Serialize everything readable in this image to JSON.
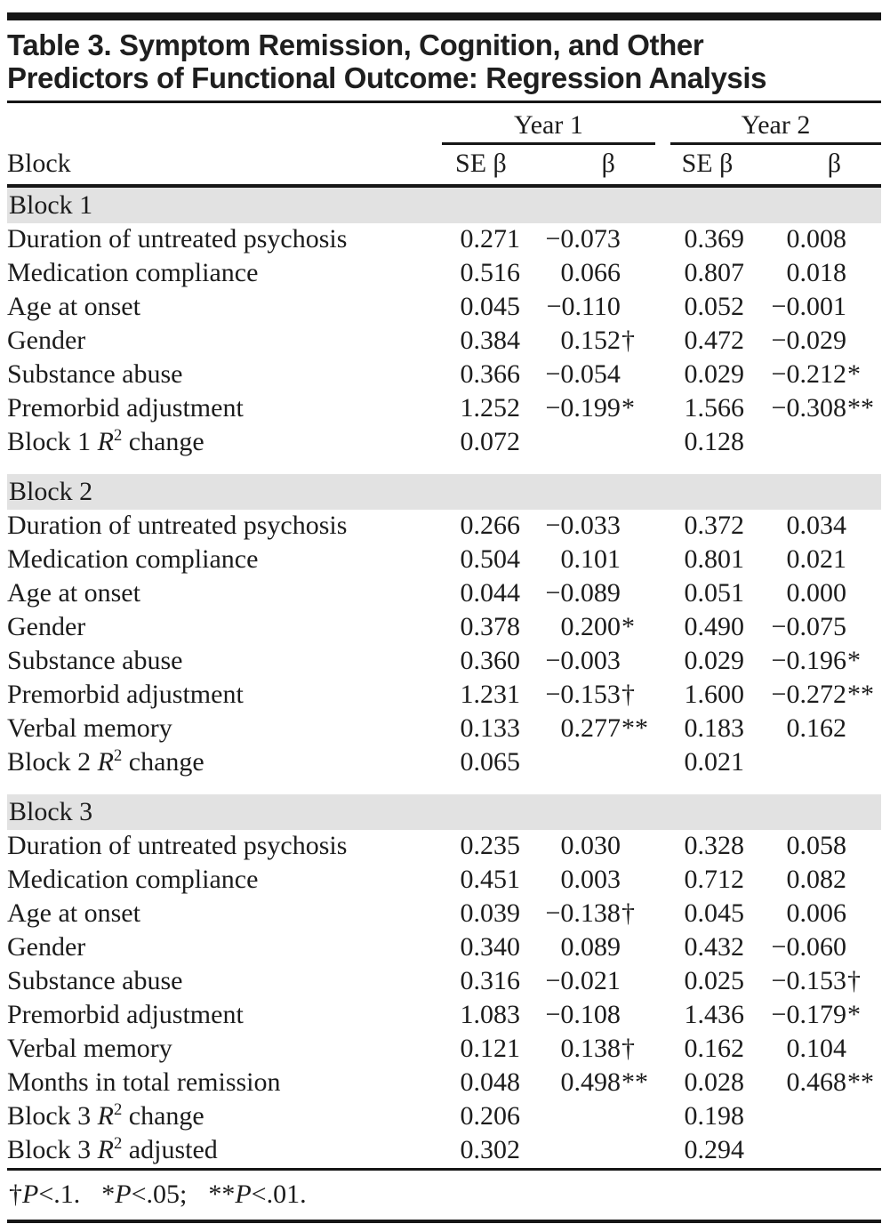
{
  "title_lines": [
    "Table 3. Symptom Remission, Cognition, and Other",
    "Predictors of Functional Outcome: Regression Analysis"
  ],
  "table": {
    "row_header": "Block",
    "year_groups": [
      "Year 1",
      "Year 2"
    ],
    "sub_headers": [
      "SE β",
      "β",
      "SE β",
      "β"
    ],
    "sections": [
      {
        "header": "Block 1",
        "rows": [
          {
            "label": "Duration of untreated psychosis",
            "y1": {
              "se": "0.271",
              "b": "−0.073",
              "bm": ""
            },
            "y2": {
              "se": "0.369",
              "b": "0.008",
              "bm": ""
            }
          },
          {
            "label": "Medication compliance",
            "y1": {
              "se": "0.516",
              "b": "0.066",
              "bm": ""
            },
            "y2": {
              "se": "0.807",
              "b": "0.018",
              "bm": ""
            }
          },
          {
            "label": "Age at onset",
            "y1": {
              "se": "0.045",
              "b": "−0.110",
              "bm": ""
            },
            "y2": {
              "se": "0.052",
              "b": "−0.001",
              "bm": ""
            }
          },
          {
            "label": "Gender",
            "y1": {
              "se": "0.384",
              "b": "0.152",
              "bm": "†"
            },
            "y2": {
              "se": "0.472",
              "b": "−0.029",
              "bm": ""
            }
          },
          {
            "label": "Substance abuse",
            "y1": {
              "se": "0.366",
              "b": "−0.054",
              "bm": ""
            },
            "y2": {
              "se": "0.029",
              "b": "−0.212",
              "bm": "*"
            }
          },
          {
            "label": "Premorbid adjustment",
            "y1": {
              "se": "1.252",
              "b": "−0.199",
              "bm": "*"
            },
            "y2": {
              "se": "1.566",
              "b": "−0.308",
              "bm": "**"
            }
          },
          {
            "label": "Block 1 R^2 change",
            "y1": {
              "se": "0.072",
              "b": "",
              "bm": ""
            },
            "y2": {
              "se": "0.128",
              "b": "",
              "bm": ""
            }
          }
        ]
      },
      {
        "header": "Block 2",
        "rows": [
          {
            "label": "Duration of untreated psychosis",
            "y1": {
              "se": "0.266",
              "b": "−0.033",
              "bm": ""
            },
            "y2": {
              "se": "0.372",
              "b": "0.034",
              "bm": ""
            }
          },
          {
            "label": "Medication compliance",
            "y1": {
              "se": "0.504",
              "b": "0.101",
              "bm": ""
            },
            "y2": {
              "se": "0.801",
              "b": "0.021",
              "bm": ""
            }
          },
          {
            "label": "Age at onset",
            "y1": {
              "se": "0.044",
              "b": "−0.089",
              "bm": ""
            },
            "y2": {
              "se": "0.051",
              "b": "0.000",
              "bm": ""
            }
          },
          {
            "label": "Gender",
            "y1": {
              "se": "0.378",
              "b": "0.200",
              "bm": "*"
            },
            "y2": {
              "se": "0.490",
              "b": "−0.075",
              "bm": ""
            }
          },
          {
            "label": "Substance abuse",
            "y1": {
              "se": "0.360",
              "b": "−0.003",
              "bm": ""
            },
            "y2": {
              "se": "0.029",
              "b": "−0.196",
              "bm": "*"
            }
          },
          {
            "label": "Premorbid adjustment",
            "y1": {
              "se": "1.231",
              "b": "−0.153",
              "bm": "†"
            },
            "y2": {
              "se": "1.600",
              "b": "−0.272",
              "bm": "**"
            }
          },
          {
            "label": "Verbal memory",
            "y1": {
              "se": "0.133",
              "b": "0.277",
              "bm": "**"
            },
            "y2": {
              "se": "0.183",
              "b": "0.162",
              "bm": ""
            }
          },
          {
            "label": "Block 2 R^2 change",
            "y1": {
              "se": "0.065",
              "b": "",
              "bm": ""
            },
            "y2": {
              "se": "0.021",
              "b": "",
              "bm": ""
            }
          }
        ]
      },
      {
        "header": "Block 3",
        "rows": [
          {
            "label": "Duration of untreated psychosis",
            "y1": {
              "se": "0.235",
              "b": "0.030",
              "bm": ""
            },
            "y2": {
              "se": "0.328",
              "b": "0.058",
              "bm": ""
            }
          },
          {
            "label": "Medication compliance",
            "y1": {
              "se": "0.451",
              "b": "0.003",
              "bm": ""
            },
            "y2": {
              "se": "0.712",
              "b": "0.082",
              "bm": ""
            }
          },
          {
            "label": "Age at onset",
            "y1": {
              "se": "0.039",
              "b": "−0.138",
              "bm": "†"
            },
            "y2": {
              "se": "0.045",
              "b": "0.006",
              "bm": ""
            }
          },
          {
            "label": "Gender",
            "y1": {
              "se": "0.340",
              "b": "0.089",
              "bm": ""
            },
            "y2": {
              "se": "0.432",
              "b": "−0.060",
              "bm": ""
            }
          },
          {
            "label": "Substance abuse",
            "y1": {
              "se": "0.316",
              "b": "−0.021",
              "bm": ""
            },
            "y2": {
              "se": "0.025",
              "b": "−0.153",
              "bm": "†"
            }
          },
          {
            "label": "Premorbid adjustment",
            "y1": {
              "se": "1.083",
              "b": "−0.108",
              "bm": ""
            },
            "y2": {
              "se": "1.436",
              "b": "−0.179",
              "bm": "*"
            }
          },
          {
            "label": "Verbal memory",
            "y1": {
              "se": "0.121",
              "b": "0.138",
              "bm": "†"
            },
            "y2": {
              "se": "0.162",
              "b": "0.104",
              "bm": ""
            }
          },
          {
            "label": "Months in total remission",
            "y1": {
              "se": "0.048",
              "b": "0.498",
              "bm": "**"
            },
            "y2": {
              "se": "0.028",
              "b": "0.468",
              "bm": "**"
            }
          },
          {
            "label": "Block 3 R^2 change",
            "y1": {
              "se": "0.206",
              "b": "",
              "bm": ""
            },
            "y2": {
              "se": "0.198",
              "b": "",
              "bm": ""
            }
          },
          {
            "label": "Block 3 R^2 adjusted",
            "y1": {
              "se": "0.302",
              "b": "",
              "bm": ""
            },
            "y2": {
              "se": "0.294",
              "b": "",
              "bm": ""
            }
          }
        ]
      }
    ],
    "footnote": {
      "groups": [
        {
          "sym": "†",
          "p": "P",
          "cond": "<.1."
        },
        {
          "sym": "*",
          "p": "P",
          "cond": "<.05;"
        },
        {
          "sym": "**",
          "p": "P",
          "cond": "<.01."
        }
      ]
    }
  },
  "colors": {
    "rule": "#161616",
    "band_bg": "#e2e2e2",
    "text": "#1c1c1c"
  }
}
